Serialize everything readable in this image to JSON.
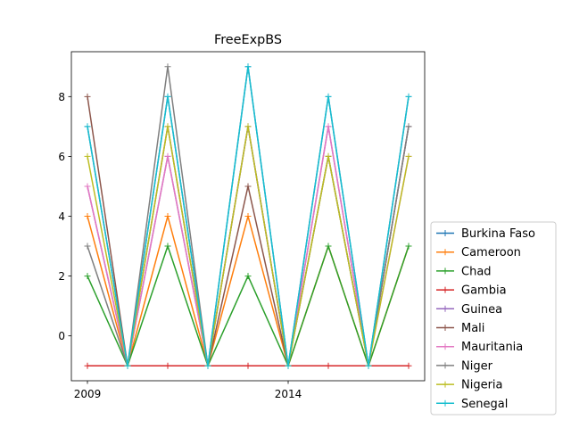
{
  "chart_data": {
    "type": "line",
    "title": "FreeExpBS",
    "xlabel": "",
    "ylabel": "",
    "x": [
      2009,
      2010,
      2011,
      2012,
      2013,
      2014,
      2015,
      2016,
      2017
    ],
    "x_tick_labels": [
      {
        "x": 2009,
        "label": "2009"
      },
      {
        "x": 2014,
        "label": "2014"
      }
    ],
    "xlim": [
      2008.6,
      2017.4
    ],
    "ylim": [
      -1.5,
      9.5
    ],
    "y_ticks": [
      0,
      2,
      4,
      6,
      8
    ],
    "grid": false,
    "legend_position": "outside-right-bottom",
    "series": [
      {
        "name": "Burkina Faso",
        "color": "#1f77b4",
        "values": [
          7,
          -1,
          8,
          -1,
          9,
          -1,
          8,
          -1,
          8
        ]
      },
      {
        "name": "Cameroon",
        "color": "#ff7f0e",
        "values": [
          4,
          -1,
          4,
          -1,
          4,
          -1,
          3,
          -1,
          3
        ]
      },
      {
        "name": "Chad",
        "color": "#2ca02c",
        "values": [
          2,
          -1,
          3,
          -1,
          2,
          -1,
          3,
          -1,
          3
        ]
      },
      {
        "name": "Gambia",
        "color": "#d62728",
        "values": [
          -1,
          -1,
          -1,
          -1,
          -1,
          -1,
          -1,
          -1,
          -1
        ]
      },
      {
        "name": "Guinea",
        "color": "#9467bd",
        "values": [
          5,
          -1,
          6,
          -1,
          7,
          -1,
          7,
          -1,
          7
        ]
      },
      {
        "name": "Mali",
        "color": "#8c564b",
        "values": [
          8,
          -1,
          7,
          -1,
          5,
          -1,
          6,
          -1,
          7
        ]
      },
      {
        "name": "Mauritania",
        "color": "#e377c2",
        "values": [
          5,
          -1,
          6,
          -1,
          7,
          -1,
          7,
          -1,
          6
        ]
      },
      {
        "name": "Niger",
        "color": "#7f7f7f",
        "values": [
          3,
          -1,
          9,
          -1,
          7,
          -1,
          6,
          -1,
          7
        ]
      },
      {
        "name": "Nigeria",
        "color": "#bcbd22",
        "values": [
          6,
          -1,
          7,
          -1,
          7,
          -1,
          6,
          -1,
          6
        ]
      },
      {
        "name": "Senegal",
        "color": "#17becf",
        "values": [
          7,
          -1,
          8,
          -1,
          9,
          -1,
          8,
          -1,
          8
        ]
      }
    ]
  }
}
